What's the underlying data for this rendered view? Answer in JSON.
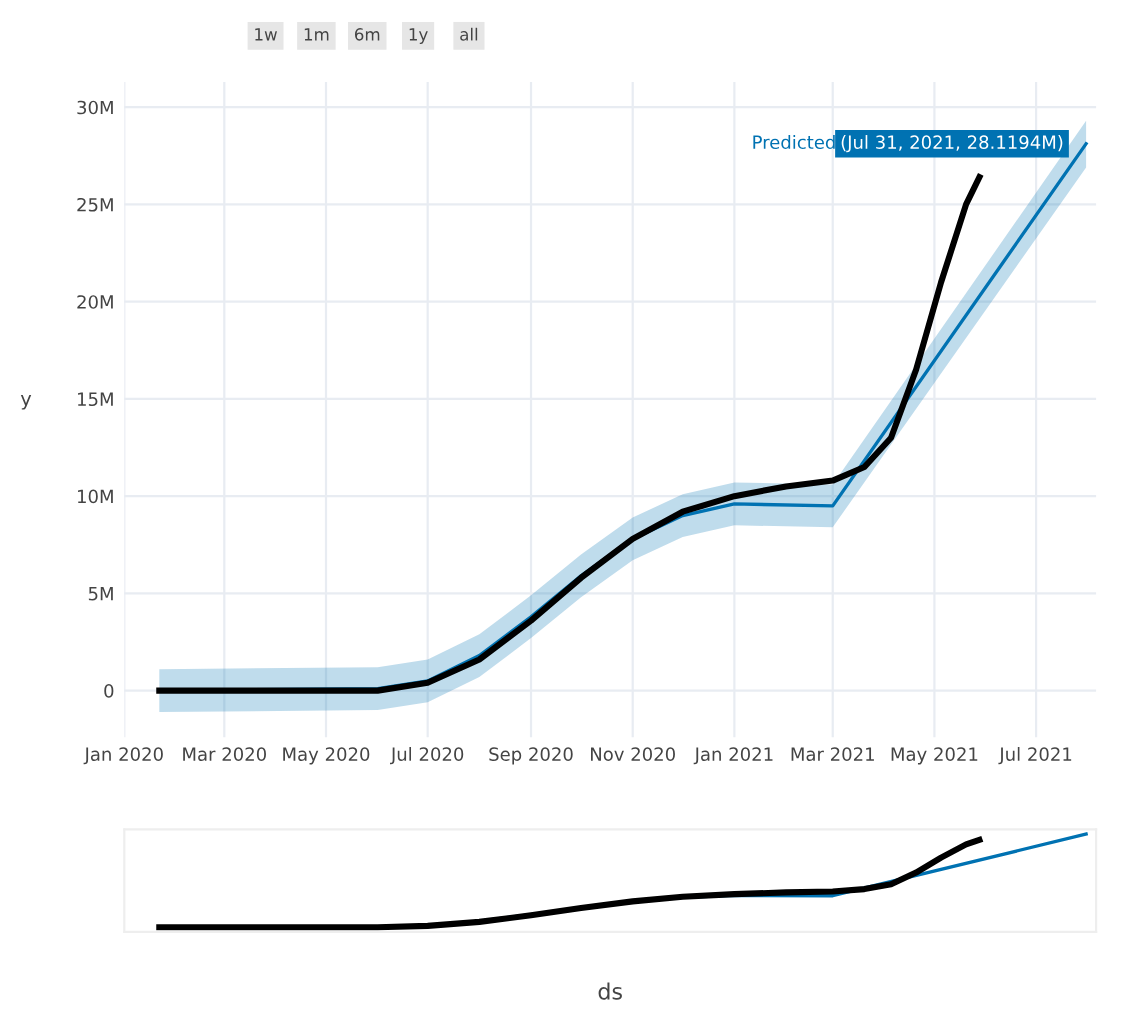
{
  "chart_data": {
    "type": "line",
    "ylabel": "y",
    "annotations": [
      "1w",
      "1m",
      "6m",
      "1y",
      "all",
      {
        "text": "(Jul 31, 2021, 28.1194M)",
        "x": "2021-07-31",
        "y": 28.1194
      },
      "ds"
    ],
    "xlim": [
      "2020-01-01",
      "2021-08-06"
    ],
    "ylim": [
      -2.4,
      31.3
    ],
    "xticks": [
      {
        "value": "2020-01-01",
        "label": "Jan 2020"
      },
      {
        "value": "2020-03-01",
        "label": "Mar 2020"
      },
      {
        "value": "2020-05-01",
        "label": "May 2020"
      },
      {
        "value": "2020-07-01",
        "label": "Jul 2020"
      },
      {
        "value": "2020-09-01",
        "label": "Sep 2020"
      },
      {
        "value": "2020-11-01",
        "label": "Nov 2020"
      },
      {
        "value": "2021-01-01",
        "label": "Jan 2021"
      },
      {
        "value": "2021-03-01",
        "label": "Mar 2021"
      },
      {
        "value": "2021-05-01",
        "label": "May 2021"
      },
      {
        "value": "2021-07-01",
        "label": "Jul 2021"
      }
    ],
    "yticks": [
      0,
      {
        "value": 5,
        "label": "5M"
      },
      {
        "value": 10,
        "label": "10M"
      },
      {
        "value": 15,
        "label": "15M"
      },
      {
        "value": 20,
        "label": "20M"
      },
      {
        "value": 25,
        "label": "25M"
      },
      {
        "value": 30,
        "label": "30M"
      }
    ],
    "grid": true,
    "legend": false,
    "marker": "none",
    "line_style": "solid",
    "series": [
      {
        "name": "Predicted",
        "color": "#0072b2",
        "x": [
          "2020-01-22",
          "2020-06-01",
          "2020-07-01",
          "2020-08-01",
          "2020-09-01",
          "2020-10-01",
          "2020-11-01",
          "2020-12-01",
          "2021-01-01",
          "2021-03-01",
          "2021-07-31"
        ],
        "values": [
          0,
          0.1,
          0.5,
          1.8,
          3.8,
          5.9,
          7.8,
          9.0,
          9.6,
          9.5,
          28.1194
        ],
        "lower": [
          -1.1,
          -1.0,
          -0.6,
          0.7,
          2.7,
          4.8,
          6.7,
          7.9,
          8.5,
          8.4,
          26.9
        ],
        "upper": [
          1.1,
          1.2,
          1.6,
          2.9,
          4.9,
          7.0,
          8.9,
          10.1,
          10.7,
          10.6,
          29.3
        ]
      },
      {
        "color": "#000000",
        "x": [
          "2020-01-22",
          "2020-06-01",
          "2020-07-01",
          "2020-08-01",
          "2020-09-01",
          "2020-10-01",
          "2020-11-01",
          "2020-12-01",
          "2021-01-01",
          "2021-02-01",
          "2021-03-01",
          "2021-03-20",
          "2021-04-05",
          "2021-04-20",
          "2021-05-05",
          "2021-05-20",
          "2021-05-28"
        ],
        "values": [
          0,
          0,
          0.4,
          1.6,
          3.6,
          5.8,
          7.8,
          9.2,
          10.0,
          10.5,
          10.8,
          11.5,
          13.0,
          16.5,
          21.0,
          25.0,
          26.4
        ]
      }
    ]
  }
}
